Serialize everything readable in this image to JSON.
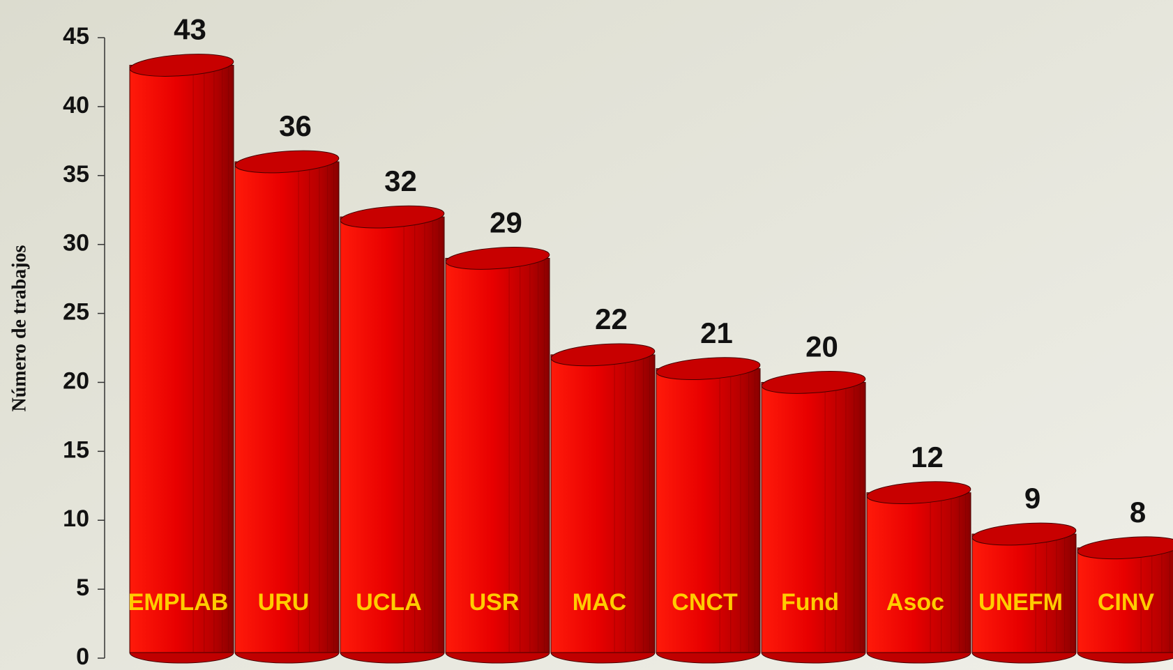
{
  "chart_data": {
    "type": "bar",
    "y_label": "Número de trabajos",
    "categories": [
      "EMPLAB",
      "URU",
      "UCLA",
      "USR",
      "MAC",
      "CNCT",
      "Fund",
      "Asoc",
      "UNEFM",
      "CINV"
    ],
    "values": [
      43,
      36,
      32,
      29,
      22,
      21,
      20,
      12,
      9,
      8
    ],
    "color": "#ff0000",
    "ylim": [
      0,
      45
    ],
    "yticks": [
      0,
      5,
      10,
      15,
      20,
      25,
      30,
      35,
      40,
      45
    ]
  }
}
